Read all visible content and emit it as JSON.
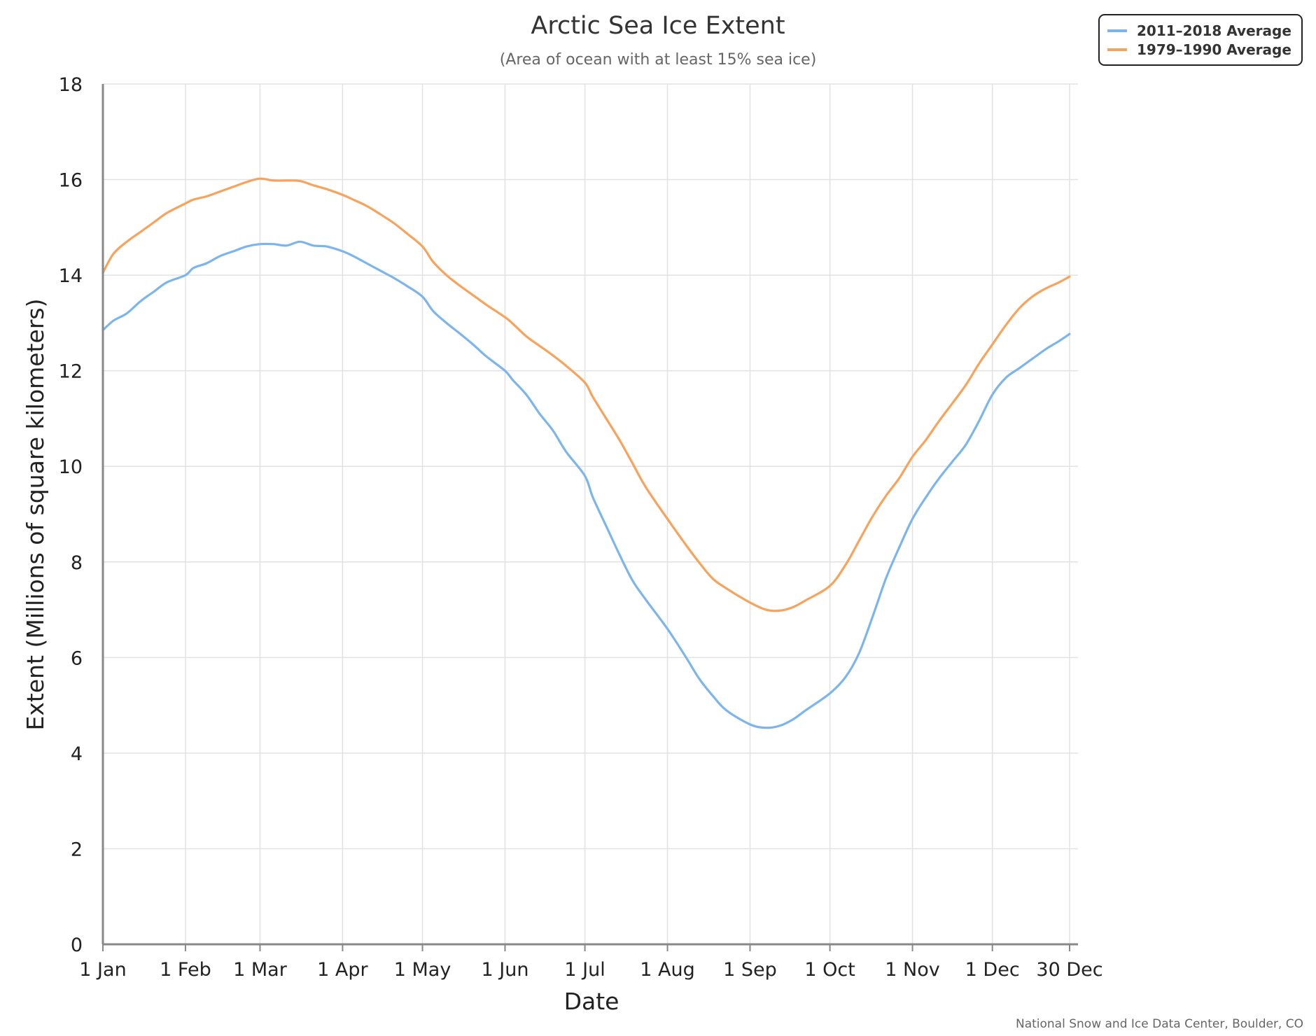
{
  "chart_data": {
    "type": "line",
    "title": "Arctic Sea Ice Extent",
    "subtitle": "(Area of ocean with at least 15% sea ice)",
    "xlabel": "Date",
    "ylabel": "Extent (Millions of square kilometers)",
    "ylim": [
      0,
      18
    ],
    "yticks": [
      0,
      2,
      4,
      6,
      8,
      10,
      12,
      14,
      16,
      18
    ],
    "xlim": [
      1,
      364
    ],
    "xticks": [
      {
        "day": 1,
        "label": "1 Jan"
      },
      {
        "day": 32,
        "label": "1 Feb"
      },
      {
        "day": 60,
        "label": "1 Mar"
      },
      {
        "day": 91,
        "label": "1 Apr"
      },
      {
        "day": 121,
        "label": "1 May"
      },
      {
        "day": 152,
        "label": "1 Jun"
      },
      {
        "day": 182,
        "label": "1 Jul"
      },
      {
        "day": 213,
        "label": "1 Aug"
      },
      {
        "day": 244,
        "label": "1 Sep"
      },
      {
        "day": 274,
        "label": "1 Oct"
      },
      {
        "day": 305,
        "label": "1 Nov"
      },
      {
        "day": 335,
        "label": "1 Dec"
      },
      {
        "day": 364,
        "label": "30 Dec"
      }
    ],
    "grid": true,
    "legend_position": "top-right",
    "series": [
      {
        "name": "2011–2018 Average",
        "color": "#7cb5ec",
        "x": [
          1,
          5,
          10,
          15,
          20,
          25,
          32,
          35,
          40,
          45,
          50,
          55,
          60,
          65,
          70,
          75,
          80,
          85,
          91,
          95,
          100,
          105,
          110,
          115,
          121,
          125,
          130,
          135,
          140,
          145,
          152,
          155,
          160,
          165,
          170,
          175,
          182,
          185,
          190,
          195,
          200,
          205,
          213,
          220,
          225,
          230,
          235,
          244,
          250,
          255,
          260,
          265,
          274,
          280,
          285,
          290,
          295,
          300,
          305,
          310,
          315,
          320,
          325,
          330,
          335,
          340,
          345,
          350,
          355,
          360,
          364
        ],
        "y": [
          12.85,
          13.05,
          13.2,
          13.45,
          13.65,
          13.85,
          14.0,
          14.15,
          14.25,
          14.4,
          14.5,
          14.6,
          14.65,
          14.65,
          14.62,
          14.7,
          14.62,
          14.6,
          14.5,
          14.4,
          14.25,
          14.1,
          13.95,
          13.78,
          13.55,
          13.25,
          13.0,
          12.78,
          12.55,
          12.3,
          12.0,
          11.8,
          11.5,
          11.1,
          10.75,
          10.3,
          9.8,
          9.35,
          8.75,
          8.15,
          7.6,
          7.2,
          6.6,
          6.0,
          5.55,
          5.2,
          4.9,
          4.6,
          4.53,
          4.57,
          4.7,
          4.9,
          5.25,
          5.6,
          6.1,
          6.85,
          7.65,
          8.3,
          8.9,
          9.35,
          9.75,
          10.1,
          10.45,
          10.95,
          11.5,
          11.85,
          12.05,
          12.25,
          12.45,
          12.62,
          12.77
        ]
      },
      {
        "name": "1979–1990 Average",
        "color": "#f7a35c",
        "x": [
          1,
          5,
          10,
          15,
          20,
          25,
          32,
          35,
          40,
          45,
          50,
          55,
          60,
          65,
          70,
          75,
          80,
          85,
          91,
          95,
          100,
          105,
          110,
          115,
          121,
          125,
          130,
          135,
          140,
          145,
          152,
          155,
          160,
          165,
          170,
          175,
          182,
          185,
          190,
          195,
          200,
          205,
          213,
          220,
          225,
          230,
          235,
          244,
          250,
          255,
          260,
          265,
          274,
          280,
          285,
          290,
          295,
          300,
          305,
          310,
          315,
          320,
          325,
          330,
          335,
          340,
          345,
          350,
          355,
          360,
          364
        ],
        "y": [
          14.05,
          14.45,
          14.7,
          14.9,
          15.1,
          15.3,
          15.5,
          15.58,
          15.65,
          15.75,
          15.85,
          15.95,
          16.02,
          15.98,
          15.98,
          15.97,
          15.88,
          15.8,
          15.68,
          15.58,
          15.45,
          15.28,
          15.1,
          14.88,
          14.6,
          14.28,
          14.0,
          13.78,
          13.58,
          13.38,
          13.12,
          12.98,
          12.72,
          12.52,
          12.32,
          12.1,
          11.75,
          11.45,
          11.0,
          10.55,
          10.05,
          9.55,
          8.9,
          8.35,
          7.98,
          7.65,
          7.45,
          7.15,
          7.0,
          6.98,
          7.05,
          7.2,
          7.5,
          7.95,
          8.45,
          8.95,
          9.38,
          9.75,
          10.2,
          10.55,
          10.95,
          11.32,
          11.7,
          12.15,
          12.55,
          12.95,
          13.3,
          13.55,
          13.72,
          13.85,
          13.97
        ]
      }
    ],
    "credit": "National Snow and Ice Data Center, Boulder, CO"
  }
}
